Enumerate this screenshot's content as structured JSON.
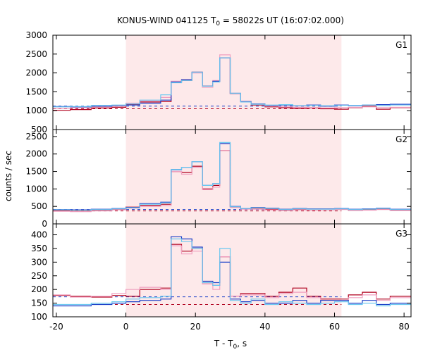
{
  "chart_data": {
    "type": "line",
    "title_prefix": "KONUS-WIND 041125 T",
    "title_sub": "0",
    "title_suffix": " = 58022s UT (16:07:02.000)",
    "xlabel_prefix": "T - T",
    "xlabel_sub": "0",
    "xlabel_suffix": ", s",
    "ylabel": "counts / sec",
    "xlim": [
      -21,
      82
    ],
    "xticks": [
      -20,
      0,
      20,
      40,
      60,
      80
    ],
    "xtick_labels": [
      "-20",
      "0",
      "20",
      "40",
      "60",
      "80"
    ],
    "highlight_x": [
      0,
      62
    ],
    "colors": {
      "highlight": "#fde9ea",
      "dark_red": "#b0001e",
      "pink": "#f0a0c0",
      "dark_blue": "#1a3fc8",
      "light_blue": "#6cc8f0",
      "bg_red_dash": "#b0001e",
      "bg_blue_dash": "#1a3fc8"
    },
    "panels": [
      {
        "label": "G1",
        "ylim": [
          500,
          3000
        ],
        "yticks": [
          500,
          1000,
          1500,
          2000,
          2500,
          3000
        ],
        "ytick_labels": [
          "500",
          "1000",
          "1500",
          "2000",
          "2500",
          "3000"
        ],
        "background_levels": [
          1050,
          1120
        ],
        "edges": [
          -21,
          -16,
          -10,
          -4,
          0,
          4,
          10,
          13,
          16,
          19,
          22,
          25,
          27,
          30,
          33,
          36,
          40,
          44,
          48,
          52,
          56,
          60,
          64,
          68,
          72,
          76,
          82
        ],
        "series": [
          {
            "name": "",
            "color_key": "dark_red",
            "values": [
              1010,
              1030,
              1070,
              1090,
              1160,
              1230,
              1240,
              1760,
              1800,
              2020,
              1650,
              1780,
              2400,
              1450,
              1240,
              1150,
              1100,
              1080,
              1060,
              1070,
              1050,
              1040,
              1080,
              1120,
              1040,
              1080
            ]
          },
          {
            "name": "",
            "color_key": "pink",
            "values": [
              1060,
              1080,
              1100,
              1120,
              1200,
              1260,
              1350,
              1780,
              1830,
              2000,
              1620,
              1800,
              2480,
              1450,
              1250,
              1170,
              1120,
              1100,
              1090,
              1080,
              1070,
              1080,
              1090,
              1100,
              1080,
              1090
            ]
          },
          {
            "name": "",
            "color_key": "dark_blue",
            "values": [
              1110,
              1100,
              1120,
              1140,
              1150,
              1200,
              1280,
              1760,
              1820,
              2020,
              1650,
              1780,
              2400,
              1460,
              1240,
              1180,
              1140,
              1150,
              1130,
              1150,
              1120,
              1150,
              1130,
              1150,
              1160,
              1170
            ]
          },
          {
            "name": "",
            "color_key": "light_blue",
            "values": [
              1100,
              1110,
              1140,
              1150,
              1180,
              1280,
              1420,
              1740,
              1800,
              2020,
              1650,
              1760,
              2400,
              1460,
              1230,
              1170,
              1150,
              1160,
              1130,
              1140,
              1130,
              1140,
              1140,
              1150,
              1130,
              1150
            ]
          }
        ]
      },
      {
        "label": "G2",
        "ylim": [
          0,
          2700
        ],
        "yticks": [
          0,
          500,
          1000,
          1500,
          2000,
          2500
        ],
        "ytick_labels": [
          "0",
          "500",
          "1000",
          "1500",
          "2000",
          "2500"
        ],
        "background_levels": [
          370,
          410
        ],
        "edges": [
          -21,
          -16,
          -10,
          -4,
          0,
          4,
          10,
          13,
          16,
          19,
          22,
          25,
          27,
          30,
          33,
          36,
          40,
          44,
          48,
          52,
          56,
          60,
          64,
          68,
          72,
          76,
          82
        ],
        "series": [
          {
            "name": "",
            "color_key": "dark_red",
            "values": [
              380,
              360,
              380,
              410,
              480,
              530,
              560,
              1500,
              1470,
              1650,
              1000,
              1100,
              2100,
              480,
              430,
              450,
              420,
              390,
              420,
              400,
              410,
              420,
              380,
              400,
              420,
              390
            ]
          },
          {
            "name": "",
            "color_key": "pink",
            "values": [
              360,
              350,
              370,
              400,
              450,
              500,
              520,
              1500,
              1420,
              1620,
              980,
              1050,
              2100,
              470,
              420,
              420,
              400,
              380,
              400,
              400,
              400,
              410,
              380,
              390,
              410,
              380
            ]
          },
          {
            "name": "",
            "color_key": "dark_blue",
            "values": [
              410,
              400,
              420,
              440,
              470,
              580,
              620,
              1550,
              1620,
              1780,
              1100,
              1150,
              2300,
              500,
              440,
              470,
              450,
              420,
              440,
              430,
              430,
              440,
              420,
              430,
              450,
              420
            ]
          },
          {
            "name": "",
            "color_key": "light_blue",
            "values": [
              400,
              390,
              410,
              430,
              460,
              560,
              600,
              1560,
              1620,
              1780,
              1100,
              1150,
              2330,
              490,
              440,
              460,
              440,
              410,
              430,
              420,
              420,
              430,
              410,
              420,
              440,
              410
            ]
          }
        ]
      },
      {
        "label": "G3",
        "ylim": [
          100,
          440
        ],
        "yticks": [
          100,
          150,
          200,
          250,
          300,
          350,
          400
        ],
        "ytick_labels": [
          "100",
          "150",
          "200",
          "250",
          "300",
          "350",
          "400"
        ],
        "background_levels": [
          145,
          173
        ],
        "edges": [
          -21,
          -16,
          -10,
          -4,
          0,
          4,
          10,
          13,
          16,
          19,
          22,
          25,
          27,
          30,
          33,
          36,
          40,
          44,
          48,
          52,
          56,
          60,
          64,
          68,
          72,
          76,
          82
        ],
        "series": [
          {
            "name": "",
            "color_key": "dark_red",
            "values": [
              178,
              175,
              172,
              178,
              175,
              200,
              205,
              365,
              340,
              350,
              225,
              215,
              320,
              175,
              185,
              185,
              175,
              190,
              205,
              175,
              165,
              165,
              180,
              190,
              165,
              175
            ]
          },
          {
            "name": "",
            "color_key": "pink",
            "values": [
              180,
              172,
              175,
              185,
              200,
              208,
              200,
              360,
              330,
              340,
              220,
              200,
              320,
              175,
              180,
              180,
              170,
              185,
              190,
              170,
              160,
              160,
              170,
              180,
              160,
              170
            ]
          },
          {
            "name": "",
            "color_key": "dark_blue",
            "values": [
              140,
              140,
              145,
              150,
              155,
              160,
              165,
              393,
              385,
              355,
              230,
              225,
              300,
              165,
              155,
              160,
              150,
              150,
              160,
              150,
              160,
              160,
              150,
              160,
              145,
              150
            ]
          },
          {
            "name": "",
            "color_key": "light_blue",
            "values": [
              145,
              145,
              150,
              155,
              165,
              170,
              175,
              385,
              375,
              350,
              225,
              215,
              350,
              160,
              150,
              165,
              145,
              155,
              150,
              145,
              150,
              155,
              145,
              150,
              140,
              145
            ]
          }
        ]
      }
    ]
  }
}
